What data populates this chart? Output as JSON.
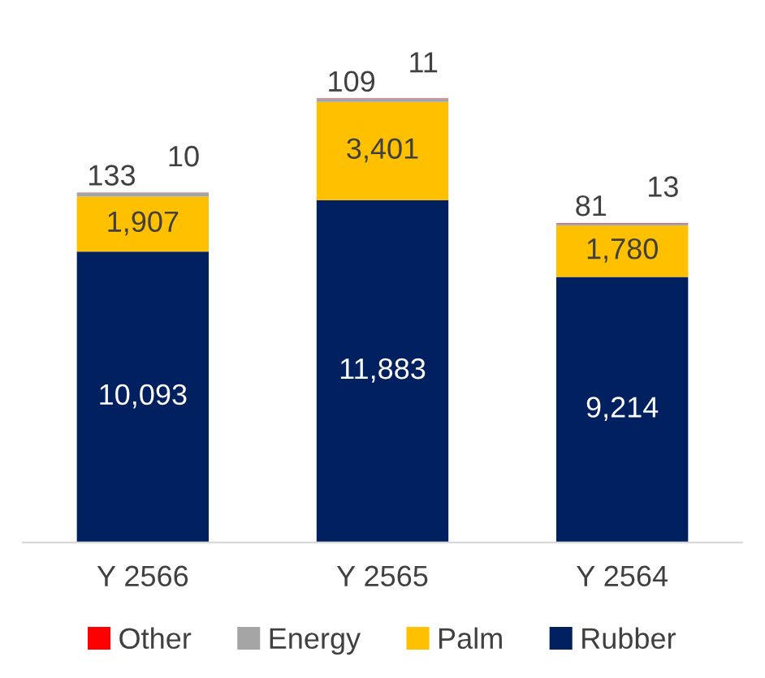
{
  "chart_data": {
    "type": "bar",
    "stacked": true,
    "legend": "bottom",
    "categories": [
      "Y 2566",
      "Y 2565",
      "Y 2564"
    ],
    "series": [
      {
        "name": "Rubber",
        "color": "#002060",
        "values": [
          10093,
          11883,
          9214
        ],
        "value_labels": [
          "10,093",
          "11,883",
          "9,214"
        ]
      },
      {
        "name": "Palm",
        "color": "#ffc000",
        "values": [
          1907,
          3401,
          1780
        ],
        "value_labels": [
          "1,907",
          "3,401",
          "1,780"
        ]
      },
      {
        "name": "Energy",
        "color": "#a5a5a5",
        "values": [
          133,
          109,
          81
        ],
        "value_labels": [
          "133",
          "109",
          "81"
        ]
      },
      {
        "name": "Other",
        "color": "#ff0000",
        "values": [
          10,
          11,
          13
        ],
        "value_labels": [
          "10",
          "11",
          "13"
        ]
      }
    ]
  }
}
